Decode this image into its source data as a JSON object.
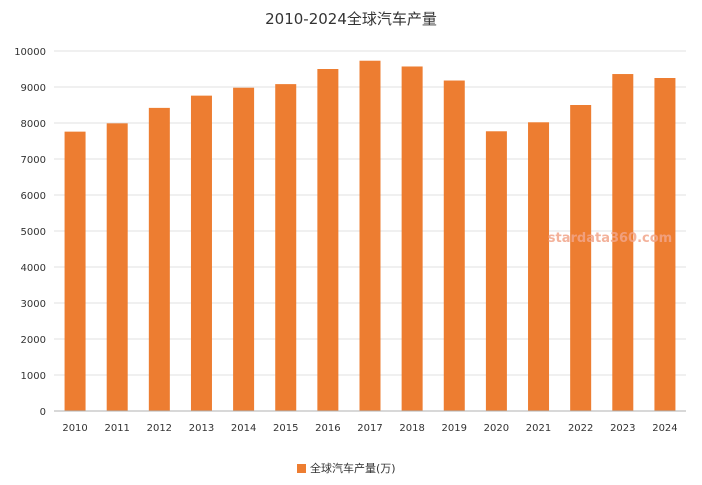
{
  "chart_data": {
    "type": "bar",
    "title": "2010-2024全球汽车产量",
    "categories": [
      "2010",
      "2011",
      "2012",
      "2013",
      "2014",
      "2015",
      "2016",
      "2017",
      "2018",
      "2019",
      "2020",
      "2021",
      "2022",
      "2023",
      "2024"
    ],
    "series": [
      {
        "name": "全球汽车产量(万)",
        "values": [
          7760,
          7990,
          8420,
          8760,
          8980,
          9080,
          9500,
          9730,
          9570,
          9180,
          7770,
          8020,
          8500,
          9360,
          9250
        ]
      }
    ],
    "ylim": [
      0,
      10000
    ],
    "yticks": [
      "0",
      "1000",
      "2000",
      "3000",
      "4000",
      "5000",
      "6000",
      "7000",
      "8000",
      "9000",
      "10000"
    ],
    "grid": true,
    "legend_position": "bottom-center",
    "bar_color": "#ed7d31"
  },
  "watermark": "stardata360.com"
}
